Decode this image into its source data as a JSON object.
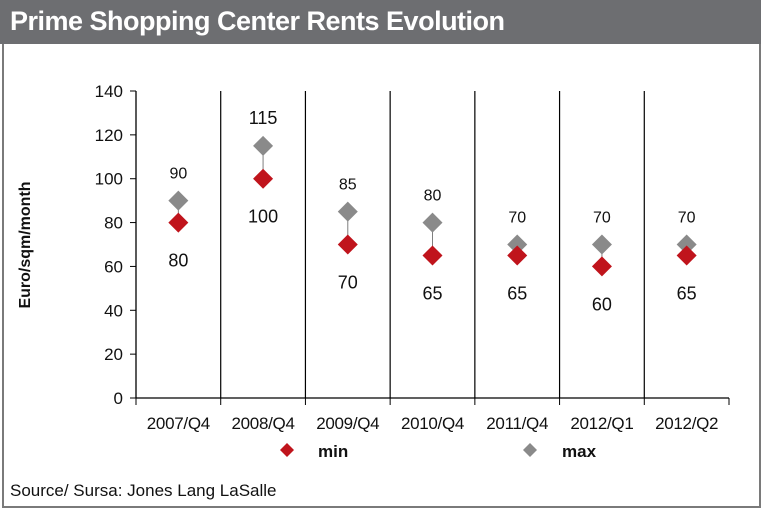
{
  "header": {
    "title": "Prime Shopping Center Rents Evolution"
  },
  "footer": {
    "source": "Source/ Sursa: Jones Lang LaSalle"
  },
  "colors": {
    "min": "#c0141c",
    "max": "#8a8a8a",
    "title_bg": "#6d6e71"
  },
  "chart_data": {
    "type": "scatter",
    "title": "Prime Shopping Center Rents Evolution",
    "xlabel": "",
    "ylabel": "Euro/sqm/month",
    "ylim": [
      0,
      140
    ],
    "yticks": [
      0,
      20,
      40,
      60,
      80,
      100,
      120,
      140
    ],
    "grid": false,
    "legend_position": "bottom",
    "categories": [
      "2007/Q4",
      "2008/Q4",
      "2009/Q4",
      "2010/Q4",
      "2011/Q4",
      "2012/Q1",
      "2012/Q2"
    ],
    "series": [
      {
        "name": "min",
        "marker": "diamond",
        "values": [
          80,
          100,
          70,
          65,
          65,
          60,
          65
        ]
      },
      {
        "name": "max",
        "marker": "diamond",
        "values": [
          90,
          115,
          85,
          80,
          70,
          70,
          70
        ]
      }
    ]
  }
}
